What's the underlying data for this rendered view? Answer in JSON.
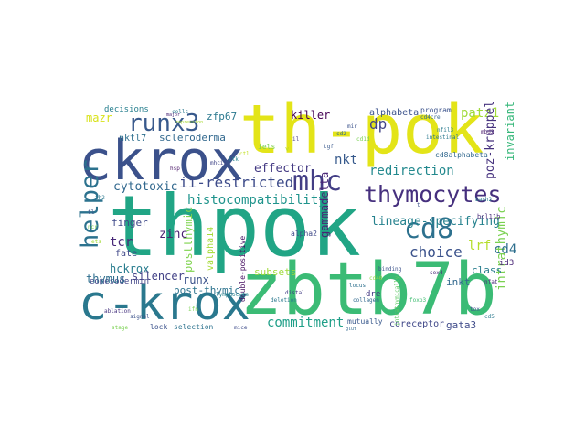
{
  "words": [
    {
      "text": "thpok",
      "color": "#21a585"
    },
    {
      "text": "th-pok",
      "color": "#e3e418"
    },
    {
      "text": "ckrox",
      "color": "#3b518b"
    },
    {
      "text": "zbtb7b",
      "color": "#3bbb75"
    },
    {
      "text": "c-krox",
      "color": "#2a788e"
    },
    {
      "text": "thymocytes",
      "color": "#46307e"
    },
    {
      "text": "cd8",
      "color": "#2d718e"
    },
    {
      "text": "mhc",
      "color": "#433e85"
    },
    {
      "text": "runx3",
      "color": "#38598c"
    },
    {
      "text": "helper",
      "color": "#2c728e"
    },
    {
      "text": "histocompatibility",
      "color": "#1f948c"
    },
    {
      "text": "ii-restricted",
      "color": "#3e4c8a"
    },
    {
      "text": "intrathymic",
      "color": "#7ad151"
    },
    {
      "text": "lineage-specifying",
      "color": "#26828e"
    },
    {
      "text": "commitment",
      "color": "#1f9f88"
    },
    {
      "text": "choice",
      "color": "#3b528b"
    },
    {
      "text": "redirection",
      "color": "#23898e"
    },
    {
      "text": "cytotoxic",
      "color": "#31688e"
    },
    {
      "text": "effector",
      "color": "#443a83"
    },
    {
      "text": "postthymic",
      "color": "#7fd34e"
    },
    {
      "text": "gammadelta",
      "color": "#482475"
    },
    {
      "text": "killer",
      "color": "#440154"
    },
    {
      "text": "alphabeta",
      "color": "#3b528b"
    },
    {
      "text": "dp",
      "color": "#414487"
    },
    {
      "text": "nkt",
      "color": "#375a8c"
    },
    {
      "text": "zfp67",
      "color": "#2a788e"
    },
    {
      "text": "patz1",
      "color": "#a0da39"
    },
    {
      "text": "poz-kruppel",
      "color": "#46327e"
    },
    {
      "text": "invariant",
      "color": "#35b779"
    },
    {
      "text": "mazr",
      "color": "#d8e219"
    },
    {
      "text": "nktl7",
      "color": "#2e6f8e"
    },
    {
      "text": "scleroderma",
      "color": "#31688e"
    },
    {
      "text": "finger",
      "color": "#3e4989"
    },
    {
      "text": "zinc",
      "color": "#481f70"
    },
    {
      "text": "tcr",
      "color": "#482878"
    },
    {
      "text": "fate",
      "color": "#3f4788"
    },
    {
      "text": "hckrox",
      "color": "#287c8e"
    },
    {
      "text": "eomesodermin",
      "color": "#414487"
    },
    {
      "text": "thymus",
      "color": "#2e6e8e"
    },
    {
      "text": "silencer",
      "color": "#424186"
    },
    {
      "text": "runx",
      "color": "#3b528b"
    },
    {
      "text": "post-thymic",
      "color": "#2c738e"
    },
    {
      "text": "subsets",
      "color": "#9fda3a"
    },
    {
      "text": "valpha14",
      "color": "#a5db36"
    },
    {
      "text": "double-positive",
      "color": "#471063"
    },
    {
      "text": "inkt",
      "color": "#31688e"
    },
    {
      "text": "class",
      "color": "#287d8e"
    },
    {
      "text": "cd4",
      "color": "#2e6f8e"
    },
    {
      "text": "lrf",
      "color": "#b5de2b"
    },
    {
      "text": "gata3",
      "color": "#3e4a89"
    },
    {
      "text": "coreceptor",
      "color": "#3f4788"
    },
    {
      "text": "dre",
      "color": "#443983"
    },
    {
      "text": "cd8alphabeta",
      "color": "#31688e"
    },
    {
      "text": "intrathymically",
      "color": "#5ec962"
    },
    {
      "text": "id3",
      "color": "#482576"
    },
    {
      "text": "decisions",
      "color": "#277f8e"
    },
    {
      "text": "mutually",
      "color": "#38588c"
    },
    {
      "text": "selection",
      "color": "#2c728e"
    },
    {
      "text": "lock",
      "color": "#3b528b"
    },
    {
      "text": "program",
      "color": "#3b528b"
    },
    {
      "text": "alpha2",
      "color": "#3f4889"
    },
    {
      "text": "bcl11b",
      "color": "#472c7a"
    },
    {
      "text": "iels",
      "color": "#7ad151"
    },
    {
      "text": "v",
      "color": "#b8de29"
    },
    {
      "text": "th2",
      "color": "#2a788e"
    },
    {
      "text": "fl",
      "color": "#3b528b"
    },
    {
      "text": "cd1d",
      "color": "#7ad151"
    },
    {
      "text": "major",
      "color": "#482475"
    },
    {
      "text": "mhcii",
      "color": "#404588"
    },
    {
      "text": "cd4cre",
      "color": "#32658e"
    },
    {
      "text": "nfil3",
      "color": "#297a8e"
    },
    {
      "text": "mbd2",
      "color": "#481a6c"
    },
    {
      "text": "intestinal",
      "color": "#2a788e"
    },
    {
      "text": "repression",
      "color": "#a8db34"
    },
    {
      "text": "binding",
      "color": "#3b528b"
    },
    {
      "text": "collagen",
      "color": "#31688e"
    },
    {
      "text": "foxp3",
      "color": "#40bd72"
    },
    {
      "text": "sox4",
      "color": "#482677"
    },
    {
      "text": "cd40",
      "color": "#8ed645"
    },
    {
      "text": "locus",
      "color": "#2d708e"
    },
    {
      "text": "distal",
      "color": "#433d84"
    },
    {
      "text": "deletion",
      "color": "#2a788e"
    },
    {
      "text": "mice",
      "color": "#3e4c8a"
    },
    {
      "text": "ablation",
      "color": "#46337f"
    },
    {
      "text": "signal",
      "color": "#3b528b"
    },
    {
      "text": "stage",
      "color": "#7ad151"
    },
    {
      "text": "lymphocyte",
      "color": "#26828e"
    },
    {
      "text": "ctl",
      "color": "#c2df23"
    },
    {
      "text": "itk",
      "color": "#25848e"
    },
    {
      "text": "hsp",
      "color": "#471365"
    },
    {
      "text": "mir",
      "color": "#3b528b"
    },
    {
      "text": "cd2",
      "color": "#31688e"
    },
    {
      "text": "ncr",
      "color": "#7ad151"
    },
    {
      "text": "ets",
      "color": "#a2da37"
    },
    {
      "text": "bach2",
      "color": "#287d8e"
    },
    {
      "text": "nfat",
      "color": "#482878"
    },
    {
      "text": "tox",
      "color": "#3b528b"
    },
    {
      "text": "cd5",
      "color": "#2a788e"
    },
    {
      "text": "glut",
      "color": "#31688e"
    },
    {
      "text": "ifn",
      "color": "#7ad151"
    },
    {
      "text": "il",
      "color": "#443983"
    },
    {
      "text": "tgf",
      "color": "#38588c"
    },
    {
      "text": "t",
      "color": "#3b528b"
    },
    {
      "text": "cells",
      "color": "#2a788e"
    }
  ]
}
